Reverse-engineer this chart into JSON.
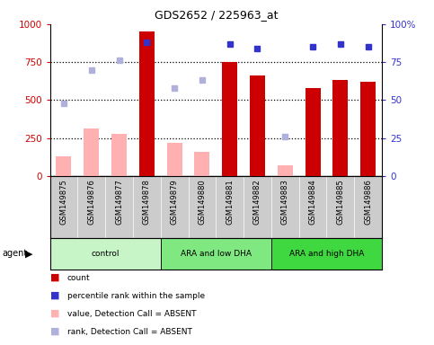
{
  "title": "GDS2652 / 225963_at",
  "samples": [
    "GSM149875",
    "GSM149876",
    "GSM149877",
    "GSM149878",
    "GSM149879",
    "GSM149880",
    "GSM149881",
    "GSM149882",
    "GSM149883",
    "GSM149884",
    "GSM149885",
    "GSM149886"
  ],
  "groups": [
    {
      "label": "control",
      "color": "#c8f5c8",
      "start": 0,
      "end": 3
    },
    {
      "label": "ARA and low DHA",
      "color": "#80e880",
      "start": 4,
      "end": 7
    },
    {
      "label": "ARA and high DHA",
      "color": "#40d840",
      "start": 8,
      "end": 11
    }
  ],
  "count_values": [
    null,
    null,
    null,
    950,
    null,
    null,
    750,
    660,
    null,
    580,
    630,
    620
  ],
  "count_absent": [
    130,
    310,
    280,
    null,
    220,
    160,
    null,
    null,
    70,
    null,
    null,
    null
  ],
  "percentile_values": [
    null,
    null,
    null,
    88,
    null,
    null,
    87,
    84,
    null,
    85,
    87,
    85
  ],
  "percentile_absent": [
    48,
    70,
    76,
    null,
    58,
    63,
    null,
    null,
    26,
    null,
    null,
    null
  ],
  "ylim_left": [
    0,
    1000
  ],
  "ylim_right": [
    0,
    100
  ],
  "yticks_left": [
    0,
    250,
    500,
    750,
    1000
  ],
  "yticks_right": [
    0,
    25,
    50,
    75,
    100
  ],
  "ytick_labels_left": [
    "0",
    "250",
    "500",
    "750",
    "1000"
  ],
  "ytick_labels_right": [
    "0",
    "25",
    "50",
    "75",
    "100%"
  ],
  "count_color": "#cc0000",
  "count_absent_color": "#ffb0b0",
  "percentile_color": "#3333cc",
  "percentile_absent_color": "#b0b0dd",
  "bg_color": "#cccccc",
  "plot_bg": "#ffffff",
  "dotted_lines": [
    250,
    500,
    750
  ],
  "legend_items": [
    {
      "color": "#cc0000",
      "label": "count"
    },
    {
      "color": "#3333cc",
      "label": "percentile rank within the sample"
    },
    {
      "color": "#ffb0b0",
      "label": "value, Detection Call = ABSENT"
    },
    {
      "color": "#b0b0dd",
      "label": "rank, Detection Call = ABSENT"
    }
  ]
}
